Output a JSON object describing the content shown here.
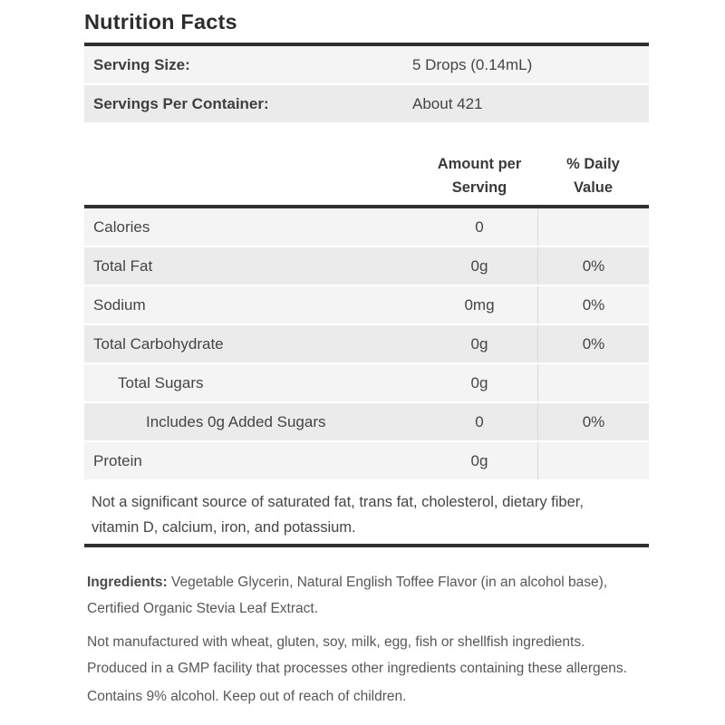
{
  "title": "Nutrition Facts",
  "serving_info": [
    {
      "label": "Serving Size:",
      "value": "5 Drops (0.14mL)"
    },
    {
      "label": "Servings Per Container:",
      "value": "About 421"
    }
  ],
  "columns": {
    "amount_line1": "Amount per",
    "amount_line2": "Serving",
    "daily_line1": "% Daily",
    "daily_line2": "Value"
  },
  "nutrients": [
    {
      "name": "Calories",
      "amount": "0",
      "daily": ""
    },
    {
      "name": "Total Fat",
      "amount": "0g",
      "daily": "0%"
    },
    {
      "name": "Sodium",
      "amount": "0mg",
      "daily": "0%"
    },
    {
      "name": "Total Carbohydrate",
      "amount": "0g",
      "daily": "0%"
    },
    {
      "name": "Total Sugars",
      "amount": "0g",
      "daily": ""
    },
    {
      "name": "Includes 0g Added Sugars",
      "amount": "0",
      "daily": "0%"
    },
    {
      "name": "Protein",
      "amount": "0g",
      "daily": ""
    }
  ],
  "footnote_lines": [
    "Not a significant source of saturated fat, trans fat, cholesterol, dietary fiber,",
    "vitamin D, calcium, iron, and potassium."
  ],
  "ingredients": {
    "label": "Ingredients:",
    "line1_rest": "Vegetable Glycerin, Natural English Toffee Flavor (in an alcohol base),",
    "line2": "Certified Organic Stevia Leaf Extract."
  },
  "allergen_lines": [
    "Not manufactured with wheat, gluten, soy, milk, egg, fish or shellfish ingredients.",
    "Produced in a GMP facility that processes other ingredients containing these allergens."
  ],
  "alcohol_note": "Contains 9% alcohol. Keep out of reach of children.",
  "colors": {
    "rule": "#303030",
    "title": "#2d2d2d",
    "text": "#454545",
    "muted": "#575757",
    "row_light": "#f4f4f4",
    "row_dark": "#ebebeb",
    "divider": "#d9d9d9"
  }
}
